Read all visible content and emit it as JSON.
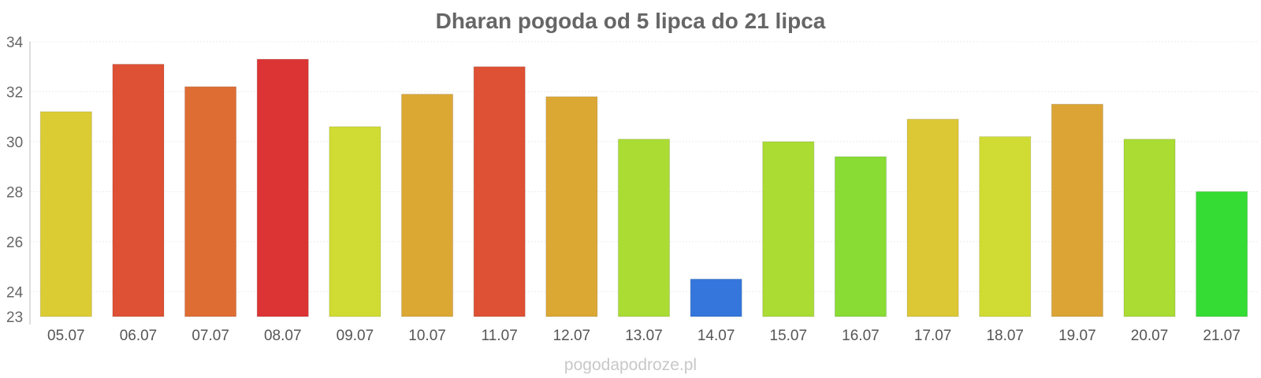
{
  "chart_data": {
    "type": "bar",
    "title": "Dharan pogoda od 5 lipca do 21 lipca",
    "categories": [
      "05.07",
      "06.07",
      "07.07",
      "08.07",
      "09.07",
      "10.07",
      "11.07",
      "12.07",
      "13.07",
      "14.07",
      "15.07",
      "16.07",
      "17.07",
      "18.07",
      "19.07",
      "20.07",
      "21.07"
    ],
    "values": [
      31.2,
      33.1,
      32.2,
      33.3,
      30.6,
      31.9,
      33.0,
      31.8,
      30.1,
      24.5,
      30.0,
      29.4,
      30.9,
      30.2,
      31.5,
      30.1,
      28.0
    ],
    "colors": [
      "#dccc34",
      "#de5134",
      "#de6d34",
      "#dc3434",
      "#d0dc34",
      "#dca834",
      "#de5134",
      "#dca834",
      "#aadc34",
      "#3476dc",
      "#aadc34",
      "#88dc34",
      "#dcc834",
      "#d0dc34",
      "#dca434",
      "#aadc34",
      "#34dc34"
    ],
    "ylim": [
      23,
      34
    ],
    "yticks": [
      23,
      24,
      26,
      28,
      30,
      32,
      34
    ],
    "xlabel": "",
    "ylabel": "",
    "grid": true,
    "legend": "none"
  },
  "credit": "pogodapodroze.pl"
}
